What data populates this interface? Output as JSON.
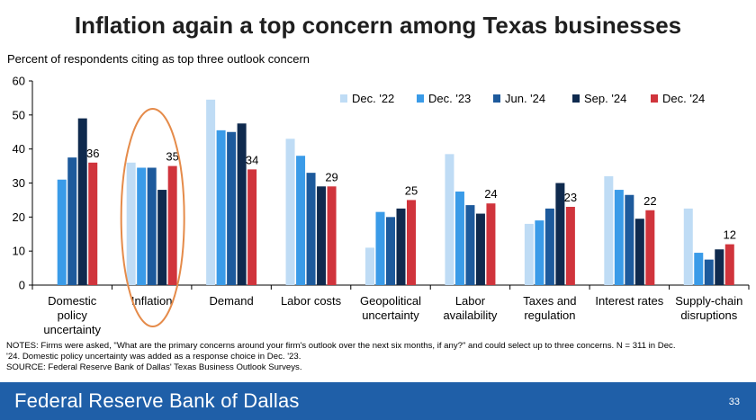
{
  "title": "Inflation again a top concern among Texas businesses",
  "chart_data": {
    "type": "bar",
    "title": "Inflation again a top concern among Texas businesses",
    "ylabel": "Percent of respondents citing as top three outlook concern",
    "xlabel": "",
    "ylim": [
      0,
      60
    ],
    "yticks": [
      0,
      10,
      20,
      30,
      40,
      50,
      60
    ],
    "grid": false,
    "legend_position": "top-right",
    "categories": [
      [
        "Domestic",
        "policy",
        "uncertainty"
      ],
      [
        "Inflation"
      ],
      [
        "Demand"
      ],
      [
        "Labor costs"
      ],
      [
        "Geopolitical",
        "uncertainty"
      ],
      [
        "Labor",
        "availability"
      ],
      [
        "Taxes and",
        "regulation"
      ],
      [
        "Interest rates"
      ],
      [
        "Supply-chain",
        "disruptions"
      ]
    ],
    "series": [
      {
        "name": "Dec. '22",
        "color": "#bfdcf5",
        "values": [
          null,
          36,
          54.5,
          43,
          11,
          38.5,
          18,
          32,
          22.5
        ]
      },
      {
        "name": "Dec. '23",
        "color": "#3a9be8",
        "values": [
          31,
          34.5,
          45.5,
          38,
          21.5,
          27.5,
          19,
          28,
          9.5
        ]
      },
      {
        "name": "Jun. '24",
        "color": "#1d5a9c",
        "values": [
          37.5,
          34.5,
          45,
          33,
          20,
          23.5,
          22.5,
          26.5,
          7.5
        ]
      },
      {
        "name": "Sep. '24",
        "color": "#0f2a4e",
        "values": [
          49,
          28,
          47.5,
          29,
          22.5,
          21,
          30,
          19.5,
          10.5
        ]
      },
      {
        "name": "Dec. '24",
        "color": "#d0343c",
        "values": [
          36,
          35,
          34,
          29,
          25,
          24,
          23,
          22,
          12
        ]
      }
    ],
    "data_labels": [
      "36",
      "35",
      "34",
      "29",
      "25",
      "24",
      "23",
      "22",
      "12"
    ],
    "annotation": "circle around Inflation",
    "annotation_color": "#e58b4a"
  },
  "notes": {
    "line1": "NOTES: Firms were asked, \"What are the primary concerns around your firm's outlook over the next six months, if any?\" and could select up to three concerns. N = 311 in Dec.",
    "line2": "'24. Domestic policy uncertainty was added as a response choice in Dec. '23.",
    "line3": "SOURCE: Federal Reserve Bank of Dallas' Texas Business Outlook Surveys."
  },
  "footer": {
    "org_name": "Federal Reserve Bank of Dallas",
    "page_number": "33",
    "color": "#1f5fa8"
  }
}
